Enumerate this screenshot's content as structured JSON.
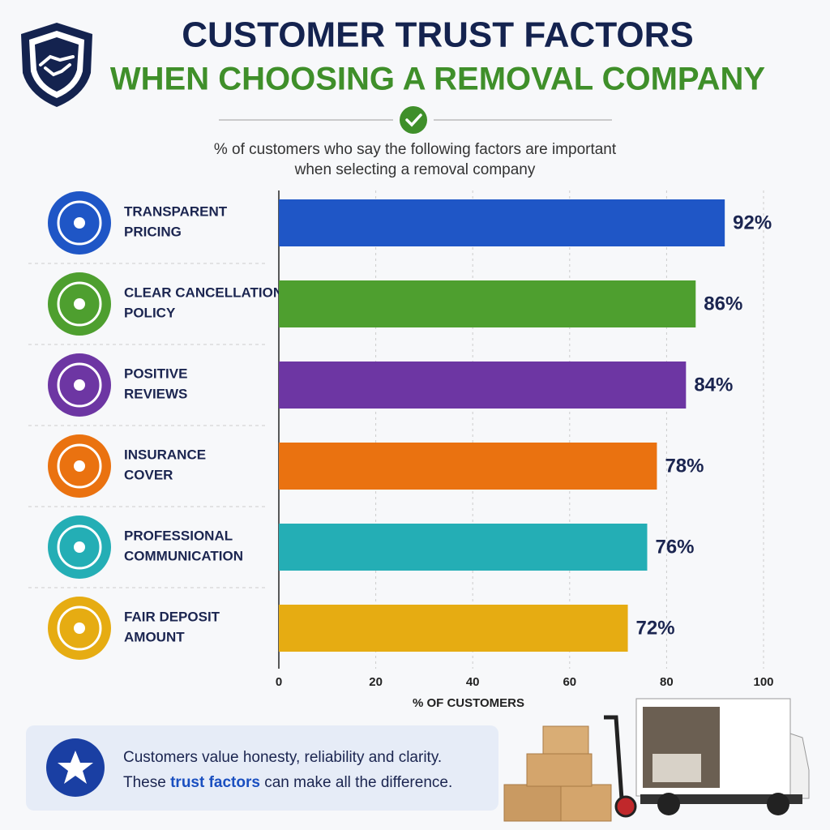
{
  "chart_data": {
    "type": "bar",
    "orientation": "horizontal",
    "title": [
      "CUSTOMER TRUST FACTORS",
      "WHEN CHOOSING A REMOVAL COMPANY"
    ],
    "subtitle": [
      "% of customers who say the following factors are important",
      "when selecting a removal company"
    ],
    "categories": [
      "TRANSPARENT\nPRICING",
      "CLEAR CANCELLATION\nPOLICY",
      "POSITIVE\nREVIEWS",
      "INSURANCE\nCOVER",
      "PROFESSIONAL\nCOMMUNICATION",
      "FAIR DEPOSIT\nAMOUNT"
    ],
    "values": [
      92,
      86,
      84,
      78,
      76,
      72
    ],
    "value_labels": [
      "92%",
      "86%",
      "84%",
      "78%",
      "76%",
      "72%"
    ],
    "colors": [
      "#1f56c6",
      "#4e9f2f",
      "#6d36a3",
      "#ea7210",
      "#24aeb5",
      "#e6ac12"
    ],
    "xlim": [
      0,
      100
    ],
    "xticks": [
      0,
      20,
      40,
      60,
      80,
      100
    ],
    "grid": true,
    "xlabel": "% OF CUSTOMERS",
    "footer": [
      [
        "Customers value honesty, reliability and clarity."
      ],
      [
        "These ",
        "trust factors",
        " can make all the difference."
      ]
    ]
  }
}
